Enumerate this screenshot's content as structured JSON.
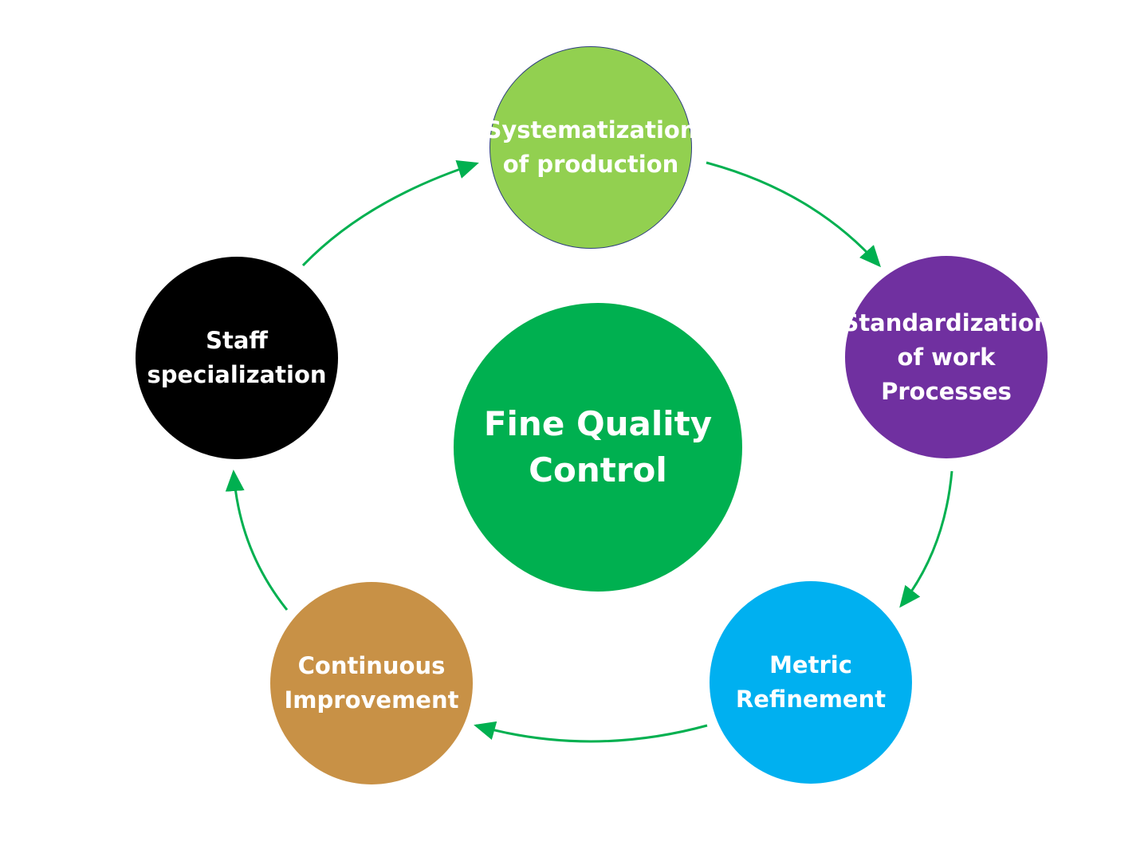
{
  "center": {
    "label": "Fine Quality\nControl",
    "color": "#00B050"
  },
  "nodes": [
    {
      "label": "Systematization\nof production",
      "color": "#92D050"
    },
    {
      "label": "Standardization\nof work\nProcesses",
      "color": "#7030A0"
    },
    {
      "label": "Metric\nRefinement",
      "color": "#00B0F0"
    },
    {
      "label": "Continuous\nImprovement",
      "color": "#C89146"
    },
    {
      "label": "Staff\nspecialization",
      "color": "#000000"
    }
  ],
  "arrow_color": "#00B050"
}
